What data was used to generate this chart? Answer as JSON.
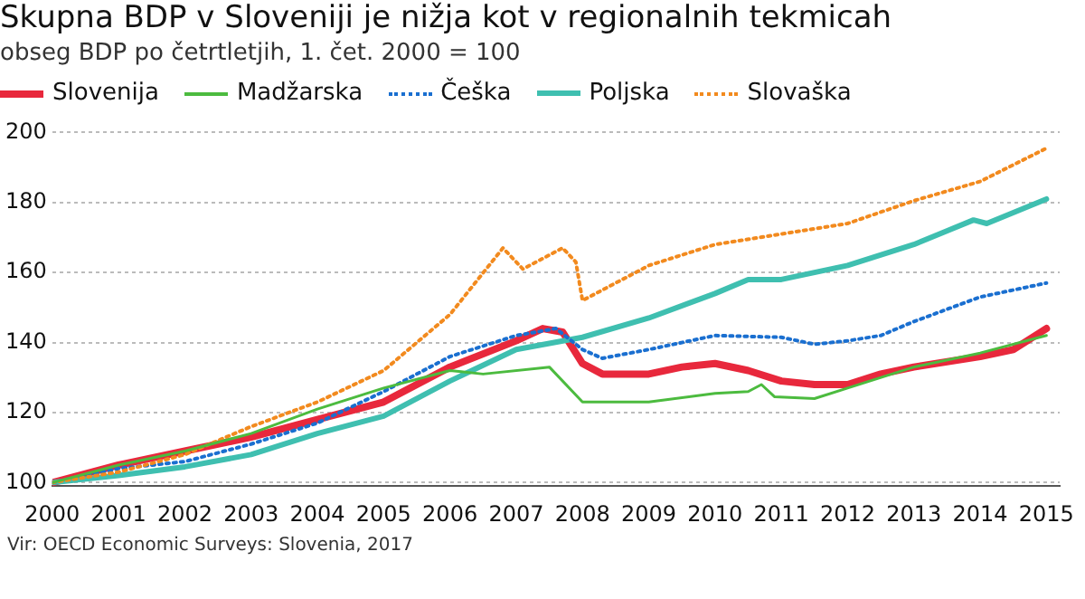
{
  "chart_data": {
    "type": "line",
    "title": "Skupna BDP v Sloveniji je nižja kot v regionalnih tekmicah",
    "subtitle": "obseg BDP po četrtletjih, 1. čet. 2000 = 100",
    "annotations": [
      "Vir: OECD Economic Surveys: Slovenia, 2017"
    ],
    "legend": "top left",
    "grid": "y",
    "marker": "none",
    "xlim": [
      2000,
      2015.2
    ],
    "xticks": [
      2000,
      2001,
      2002,
      2003,
      2004,
      2005,
      2006,
      2007,
      2008,
      2009,
      2010,
      2011,
      2012,
      2013,
      2014,
      2015
    ],
    "ylim": [
      99,
      200
    ],
    "yticks": [
      100,
      120,
      140,
      160,
      180,
      200
    ],
    "series": [
      {
        "name": "Slovenija",
        "color": "#e8283c",
        "line_style": "solid",
        "x": [
          2000,
          2001,
          2002,
          2003,
          2004,
          2005,
          2006,
          2007,
          2007.4,
          2007.7,
          2008,
          2008.3,
          2009,
          2009.5,
          2010,
          2010.5,
          2011,
          2011.5,
          2012,
          2012.5,
          2013,
          2014,
          2014.5,
          2015
        ],
        "values": [
          100,
          105,
          109,
          113,
          118,
          123,
          133,
          140.5,
          144,
          143,
          134,
          131,
          131,
          133,
          134,
          132,
          129,
          128,
          128,
          131,
          133,
          136,
          138,
          144
        ]
      },
      {
        "name": "Madžarska",
        "color": "#4cbb3f",
        "line_style": "solid",
        "x": [
          2000,
          2001,
          2002,
          2003,
          2004,
          2005,
          2006,
          2006.5,
          2007.5,
          2008,
          2009,
          2010,
          2010.5,
          2010.7,
          2010.9,
          2011.5,
          2012,
          2013,
          2014,
          2015
        ],
        "values": [
          100,
          105,
          109,
          114,
          121,
          127,
          132,
          131,
          133,
          123,
          123,
          125.5,
          126,
          128,
          124.5,
          124,
          127,
          133,
          137,
          142
        ]
      },
      {
        "name": "Češka",
        "color": "#1a6fd0",
        "line_style": "dotted",
        "x": [
          2000,
          2001,
          2002,
          2003,
          2004,
          2005,
          2006,
          2007,
          2007.6,
          2008,
          2008.3,
          2009,
          2010,
          2011,
          2011.5,
          2012,
          2012.5,
          2013,
          2014,
          2015
        ],
        "values": [
          100,
          104,
          106,
          111,
          117,
          126,
          136,
          142,
          144,
          138,
          135.5,
          138,
          142,
          141.5,
          139.5,
          140.5,
          142,
          146,
          153,
          157
        ]
      },
      {
        "name": "Poljska",
        "color": "#3fbfb0",
        "line_style": "solid",
        "x": [
          2000,
          2001,
          2002,
          2003,
          2004,
          2005,
          2006,
          2007,
          2008,
          2009,
          2010,
          2010.5,
          2011,
          2012,
          2013,
          2013.9,
          2014.1,
          2015
        ],
        "values": [
          100,
          102,
          104.5,
          108,
          114,
          119,
          129,
          138,
          141.5,
          147,
          154,
          158,
          158,
          162,
          168,
          175,
          174,
          181
        ]
      },
      {
        "name": "Slovaška",
        "color": "#f28a1e",
        "line_style": "dotted",
        "x": [
          2000,
          2001,
          2002,
          2003,
          2004,
          2005,
          2006,
          2006.8,
          2007.1,
          2007.7,
          2007.9,
          2008,
          2009,
          2010,
          2011,
          2012,
          2013,
          2014,
          2015
        ],
        "values": [
          100,
          103,
          108,
          116,
          123,
          132,
          148,
          167,
          161,
          167,
          163,
          152,
          162,
          168,
          171,
          174,
          180.5,
          186,
          195.5
        ]
      }
    ]
  }
}
